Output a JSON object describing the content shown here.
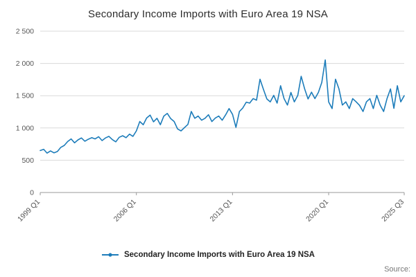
{
  "title": "Secondary Income Imports with Euro Area 19 NSA",
  "legend": {
    "label": "Secondary Income Imports with Euro Area 19 NSA"
  },
  "source_label": "Source:",
  "colors": {
    "line": "#1c7cba",
    "grid": "#d9d9d9",
    "axis": "#999999",
    "tick_text": "#555555"
  },
  "chart_data": {
    "type": "line",
    "title": "Secondary Income Imports with Euro Area 19 NSA",
    "xlabel": "",
    "ylabel": "",
    "x_start": "1999 Q1",
    "x_end": "2025 Q3",
    "x_tick_labels": [
      "1999 Q1",
      "2006 Q1",
      "2013 Q1",
      "2020 Q1",
      "2025 Q3"
    ],
    "x_tick_indices": [
      0,
      28,
      56,
      84,
      106
    ],
    "ylim": [
      0,
      2500
    ],
    "y_tick_step": 500,
    "y_tick_labels": [
      "0",
      "500",
      "1 000",
      "1 500",
      "2 000",
      "2 500"
    ],
    "grid": "horizontal",
    "legend_position": "bottom",
    "series": [
      {
        "name": "Secondary Income Imports with Euro Area 19 NSA",
        "values": [
          650,
          670,
          610,
          645,
          615,
          635,
          700,
          730,
          790,
          830,
          770,
          815,
          845,
          795,
          825,
          850,
          830,
          865,
          805,
          845,
          870,
          820,
          785,
          855,
          880,
          850,
          905,
          870,
          955,
          1100,
          1050,
          1155,
          1200,
          1095,
          1150,
          1050,
          1185,
          1225,
          1145,
          1100,
          985,
          955,
          1005,
          1055,
          1255,
          1150,
          1185,
          1120,
          1150,
          1205,
          1100,
          1155,
          1185,
          1120,
          1205,
          1300,
          1210,
          1010,
          1255,
          1310,
          1400,
          1385,
          1455,
          1430,
          1755,
          1600,
          1450,
          1405,
          1505,
          1385,
          1655,
          1455,
          1355,
          1550,
          1405,
          1505,
          1800,
          1605,
          1450,
          1555,
          1455,
          1550,
          1705,
          2055,
          1405,
          1300,
          1755,
          1605,
          1355,
          1405,
          1300,
          1455,
          1405,
          1350,
          1255,
          1405,
          1455,
          1300,
          1505,
          1355,
          1255,
          1455,
          1605,
          1305,
          1655,
          1405,
          1500
        ]
      }
    ]
  }
}
